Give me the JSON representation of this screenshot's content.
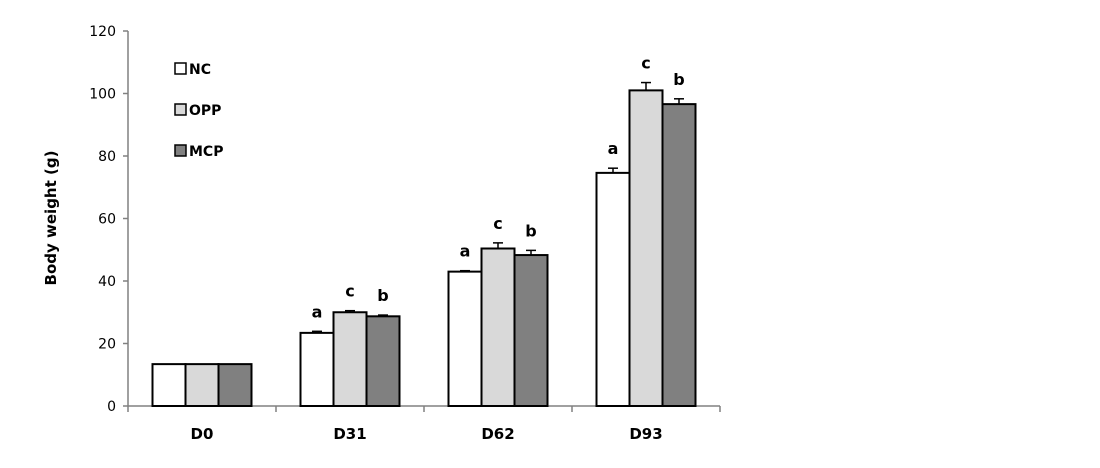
{
  "chart_data": {
    "type": "bar",
    "title": "",
    "xlabel": "",
    "ylabel": "Body weight (g)",
    "ylim": [
      0,
      120
    ],
    "yticks": [
      0,
      20,
      40,
      60,
      80,
      100,
      120
    ],
    "grid": false,
    "legend_position": "top-left",
    "categories": [
      "D0",
      "D31",
      "D62",
      "D93"
    ],
    "series": [
      {
        "name": "NC",
        "color": "#ffffff",
        "values": [
          13.4,
          23.4,
          43.0,
          74.6
        ],
        "errors": [
          0,
          0.5,
          0.3,
          1.5
        ],
        "letters": [
          "",
          "a",
          "a",
          "a"
        ]
      },
      {
        "name": "OPP",
        "color": "#d9d9d9",
        "values": [
          13.4,
          30.0,
          50.4,
          101.0
        ],
        "errors": [
          0,
          0.5,
          1.8,
          2.5
        ],
        "letters": [
          "",
          "c",
          "c",
          "c"
        ]
      },
      {
        "name": "MCP",
        "color": "#808080",
        "values": [
          13.4,
          28.7,
          48.3,
          96.6
        ],
        "errors": [
          0,
          0.4,
          1.5,
          1.7
        ],
        "letters": [
          "",
          "b",
          "b",
          "b"
        ]
      }
    ]
  }
}
